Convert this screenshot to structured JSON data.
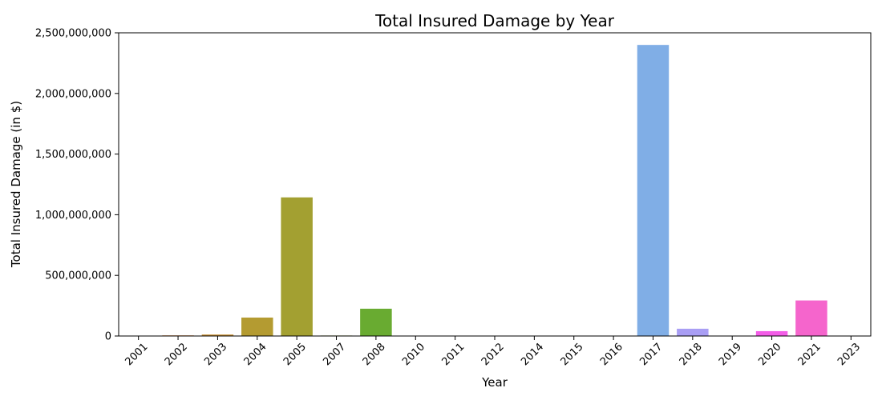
{
  "chart_data": {
    "type": "bar",
    "title": "Total Insured Damage by Year",
    "xlabel": "Year",
    "ylabel": "Total Insured Damage (in $)",
    "categories": [
      "2001",
      "2002",
      "2003",
      "2004",
      "2005",
      "2007",
      "2008",
      "2010",
      "2011",
      "2012",
      "2014",
      "2015",
      "2016",
      "2017",
      "2018",
      "2019",
      "2020",
      "2021",
      "2023"
    ],
    "values": [
      500000,
      5000000,
      12000000,
      152000000,
      1143000000,
      4000000,
      225000000,
      1000000,
      3000000,
      500000,
      3000000,
      1000000,
      3000000,
      2400000000,
      60000000,
      1000000,
      40000000,
      293000000,
      2000000
    ],
    "colors": [
      "#f77189",
      "#e1823a",
      "#c98f32",
      "#b49b31",
      "#a3a031",
      "#8fa531",
      "#69ab31",
      "#33b03d",
      "#35ad77",
      "#36aa93",
      "#37a8a6",
      "#39a7b7",
      "#3ba3ca",
      "#80aee6",
      "#a99ef4",
      "#d382f4",
      "#f35de7",
      "#f565cc",
      "#f56eab"
    ],
    "ylim": [
      0,
      2500000000
    ],
    "yticks": [
      "0",
      "500,000,000",
      "1,000,000,000",
      "1,500,000,000",
      "2,000,000,000",
      "2,500,000,000"
    ],
    "ytick_values": [
      0,
      500000000,
      1000000000,
      1500000000,
      2000000000,
      2500000000
    ],
    "grid": false,
    "legend": "none"
  }
}
